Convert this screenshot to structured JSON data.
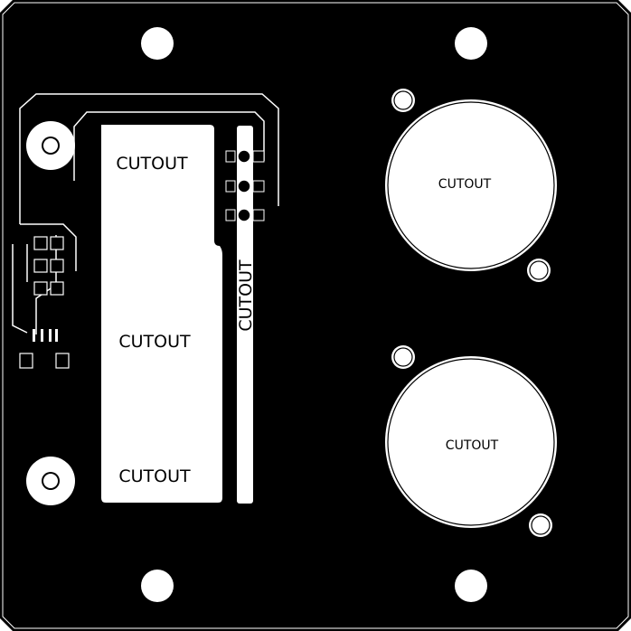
{
  "colors": {
    "board": "#000000",
    "cutout": "#ffffff",
    "text": "#000000",
    "trace": "#ffffff"
  },
  "labels": {
    "cutout_rect_top": "CUTOUT",
    "cutout_rect_middle": "CUTOUT",
    "cutout_rect_bottom": "CUTOUT",
    "cutout_slot": "CUTOUT",
    "cutout_circle_upper": "CUTOUT",
    "cutout_circle_lower": "CUTOUT"
  },
  "icons": {
    "board": "pcb-panel-icon",
    "mounting_hole": "mounting-hole-icon",
    "connector": "xlr-connector-icon",
    "pad": "solder-pad-icon"
  }
}
